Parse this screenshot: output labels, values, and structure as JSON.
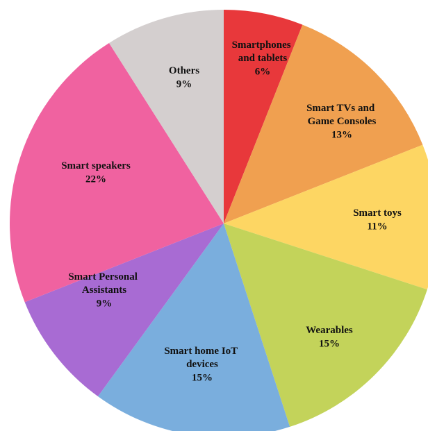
{
  "chart_data": {
    "type": "pie",
    "categories": [
      "Smartphones and tablets",
      "Smart TVs and Game Consoles",
      "Smart toys",
      "Wearables",
      "Smart home IoT devices",
      "Smart Personal Assistants",
      "Smart speakers",
      "Others"
    ],
    "values": [
      6,
      13,
      11,
      15,
      15,
      9,
      22,
      9
    ],
    "value_labels": [
      "6%",
      "13%",
      "11%",
      "15%",
      "15%",
      "9%",
      "22%",
      "9%"
    ],
    "colors": [
      "#e8383b",
      "#f0a050",
      "#fdd663",
      "#c3d35a",
      "#7aaedd",
      "#a86bd3",
      "#f062a0",
      "#d4cfcf"
    ]
  }
}
